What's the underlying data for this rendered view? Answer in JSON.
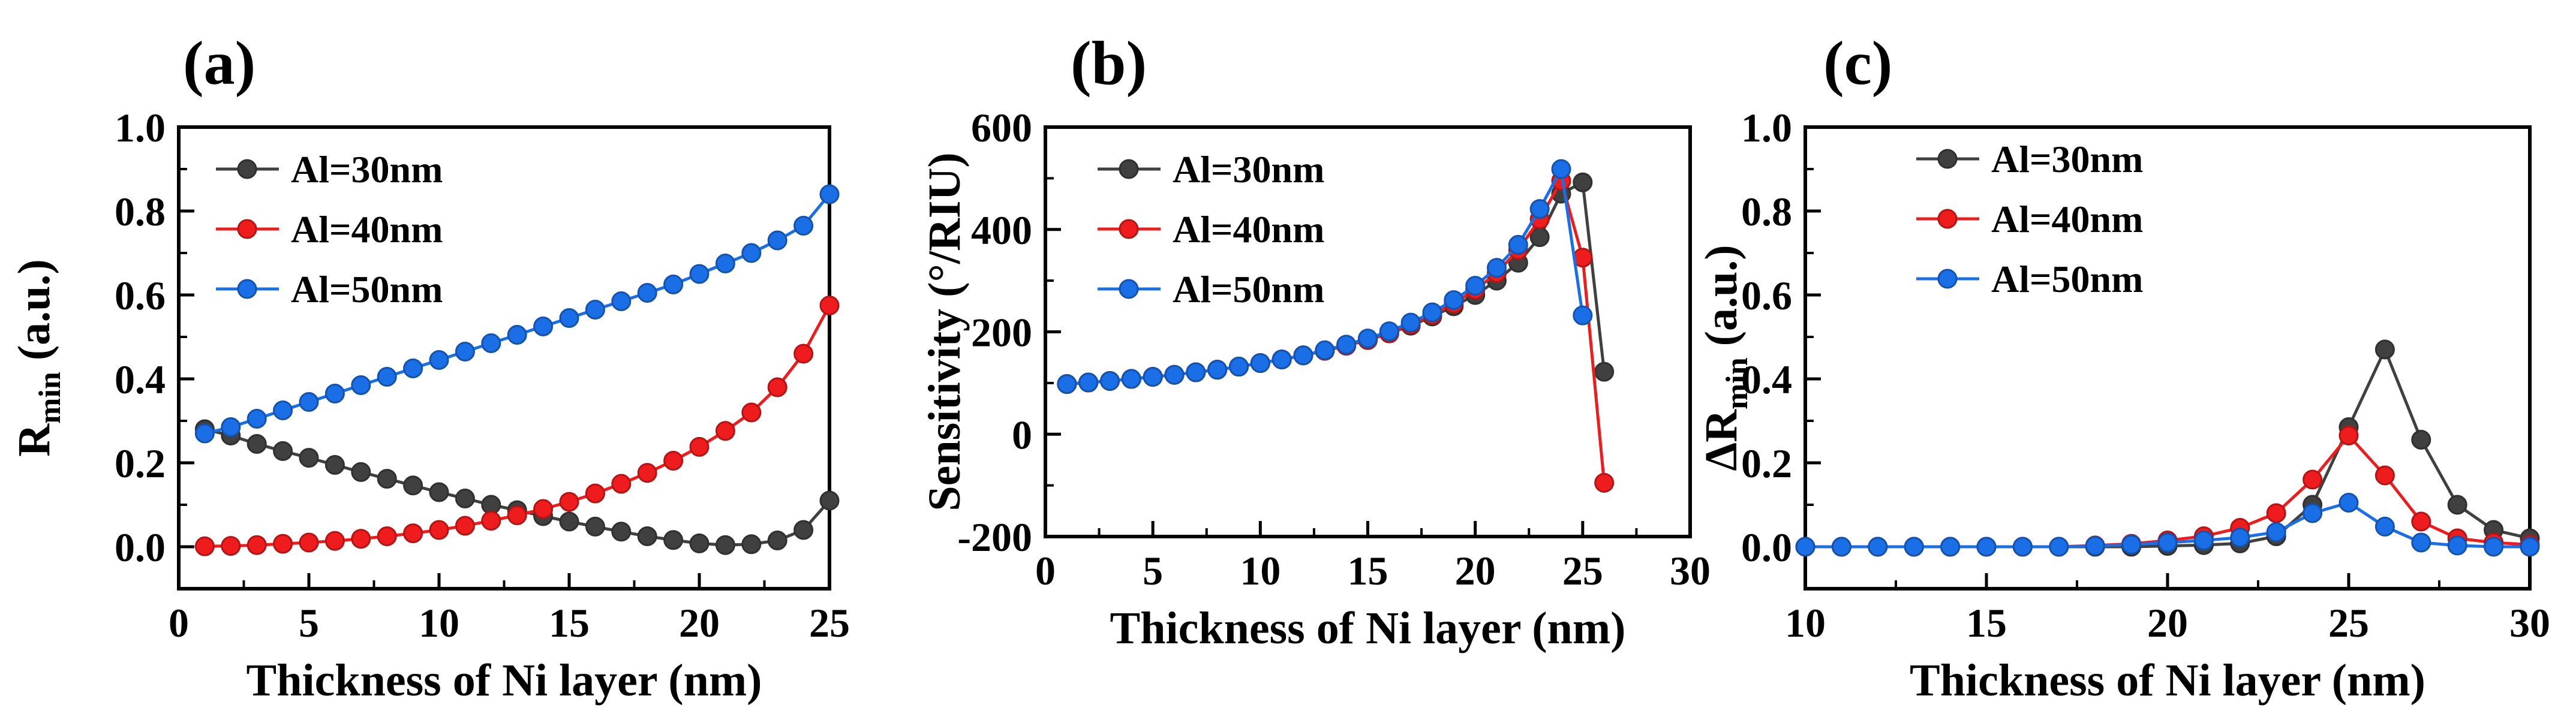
{
  "chart_data": [
    {
      "type": "line",
      "panel_label": "(a)",
      "title": "",
      "xlabel": "Thickness of Ni layer (nm)",
      "ylabel": {
        "main": "R",
        "sub": "min",
        "unit": " (a.u.)"
      },
      "xlim": [
        0,
        25
      ],
      "ylim": [
        -0.1,
        1.0
      ],
      "xticks": [
        "0",
        "5",
        "10",
        "15",
        "20",
        "25"
      ],
      "yticks": [
        "0.0",
        "0.2",
        "0.4",
        "0.6",
        "0.8",
        "1.0"
      ],
      "grid": false,
      "legend": "top-left",
      "x": [
        1,
        2,
        3,
        4,
        5,
        6,
        7,
        8,
        9,
        10,
        11,
        12,
        13,
        14,
        15,
        16,
        17,
        18,
        19,
        20,
        21,
        22,
        23,
        24,
        25
      ],
      "series": [
        {
          "name": "Al=30nm",
          "color": "#404040",
          "values": [
            0.28,
            0.265,
            0.245,
            0.228,
            0.212,
            0.195,
            0.178,
            0.162,
            0.146,
            0.13,
            0.115,
            0.1,
            0.087,
            0.073,
            0.06,
            0.048,
            0.036,
            0.025,
            0.016,
            0.008,
            0.004,
            0.006,
            0.015,
            0.04,
            0.11
          ]
        },
        {
          "name": "Al=40nm",
          "color": "#ee1c1c",
          "values": [
            0.001,
            0.002,
            0.004,
            0.007,
            0.01,
            0.014,
            0.019,
            0.025,
            0.032,
            0.04,
            0.05,
            0.062,
            0.075,
            0.09,
            0.107,
            0.127,
            0.15,
            0.176,
            0.205,
            0.238,
            0.276,
            0.32,
            0.38,
            0.46,
            0.575
          ]
        },
        {
          "name": "Al=50nm",
          "color": "#1a6ee6",
          "values": [
            0.27,
            0.285,
            0.305,
            0.325,
            0.345,
            0.365,
            0.385,
            0.405,
            0.425,
            0.445,
            0.465,
            0.485,
            0.505,
            0.525,
            0.545,
            0.565,
            0.585,
            0.605,
            0.625,
            0.65,
            0.675,
            0.7,
            0.73,
            0.765,
            0.84
          ]
        }
      ]
    },
    {
      "type": "line",
      "panel_label": "(b)",
      "title": "",
      "xlabel": "Thickness of Ni layer (nm)",
      "ylabel": {
        "main": "Sensitivity (°/RIU)"
      },
      "xlim": [
        0,
        30
      ],
      "ylim": [
        -200,
        600
      ],
      "xticks": [
        "0",
        "5",
        "10",
        "15",
        "20",
        "25",
        "30"
      ],
      "yticks": [
        "-200",
        "0",
        "200",
        "400",
        "600"
      ],
      "grid": false,
      "legend": "top-left",
      "series": [
        {
          "name": "Al=30nm",
          "color": "#404040",
          "x": [
            1,
            2,
            3,
            4,
            5,
            6,
            7,
            8,
            9,
            10,
            11,
            12,
            13,
            14,
            15,
            16,
            17,
            18,
            19,
            20,
            21,
            22,
            23,
            24,
            25,
            26
          ],
          "values": [
            98,
            101,
            104,
            108,
            112,
            116,
            121,
            126,
            132,
            139,
            146,
            154,
            163,
            173,
            184,
            197,
            212,
            230,
            250,
            272,
            300,
            335,
            385,
            470,
            492,
            122
          ]
        },
        {
          "name": "Al=40nm",
          "color": "#ee1c1c",
          "x": [
            1,
            2,
            3,
            4,
            5,
            6,
            7,
            8,
            9,
            10,
            11,
            12,
            13,
            14,
            15,
            16,
            17,
            18,
            19,
            20,
            21,
            22,
            23,
            24,
            25,
            26
          ],
          "values": [
            98,
            101,
            104,
            108,
            112,
            116,
            121,
            126,
            132,
            139,
            146,
            154,
            163,
            173,
            184,
            197,
            214,
            233,
            255,
            282,
            315,
            360,
            420,
            495,
            345,
            -95
          ]
        },
        {
          "name": "Al=50nm",
          "color": "#1a6ee6",
          "x": [
            1,
            2,
            3,
            4,
            5,
            6,
            7,
            8,
            9,
            10,
            11,
            12,
            13,
            14,
            15,
            16,
            17,
            18,
            19,
            20,
            21,
            22,
            23,
            24,
            25
          ],
          "values": [
            98,
            101,
            104,
            108,
            112,
            116,
            121,
            126,
            132,
            139,
            146,
            154,
            164,
            175,
            187,
            201,
            218,
            238,
            262,
            290,
            325,
            370,
            440,
            518,
            232
          ]
        }
      ]
    },
    {
      "type": "line",
      "panel_label": "(c)",
      "title": "",
      "xlabel": "Thickness of Ni layer (nm)",
      "ylabel": {
        "main": "ΔR",
        "sub": "min",
        "unit": " (a.u.)"
      },
      "xlim": [
        10,
        30
      ],
      "ylim": [
        -0.1,
        1.0
      ],
      "xticks": [
        "10",
        "15",
        "20",
        "25",
        "30"
      ],
      "yticks": [
        "0.0",
        "0.2",
        "0.4",
        "0.6",
        "0.8",
        "1.0"
      ],
      "grid": false,
      "legend": "top-left",
      "x": [
        10,
        11,
        12,
        13,
        14,
        15,
        16,
        17,
        18,
        19,
        20,
        21,
        22,
        23,
        24,
        25,
        26,
        27,
        28,
        29,
        30
      ],
      "series": [
        {
          "name": "Al=30nm",
          "color": "#404040",
          "values": [
            0,
            0,
            0,
            0,
            0,
            0,
            0,
            0,
            0,
            0,
            0.002,
            0.004,
            0.008,
            0.025,
            0.1,
            0.285,
            0.47,
            0.255,
            0.1,
            0.04,
            0.02
          ]
        },
        {
          "name": "Al=40nm",
          "color": "#ee1c1c",
          "values": [
            0,
            0,
            0,
            0,
            0,
            0,
            0,
            0,
            0.003,
            0.007,
            0.015,
            0.025,
            0.045,
            0.08,
            0.16,
            0.265,
            0.17,
            0.06,
            0.02,
            0.01,
            0.005
          ]
        },
        {
          "name": "Al=50nm",
          "color": "#1a6ee6",
          "values": [
            0,
            0,
            0,
            0,
            0,
            0,
            0,
            0,
            0.002,
            0.005,
            0.01,
            0.015,
            0.022,
            0.035,
            0.08,
            0.105,
            0.048,
            0.01,
            0.003,
            0,
            0
          ]
        }
      ]
    }
  ]
}
